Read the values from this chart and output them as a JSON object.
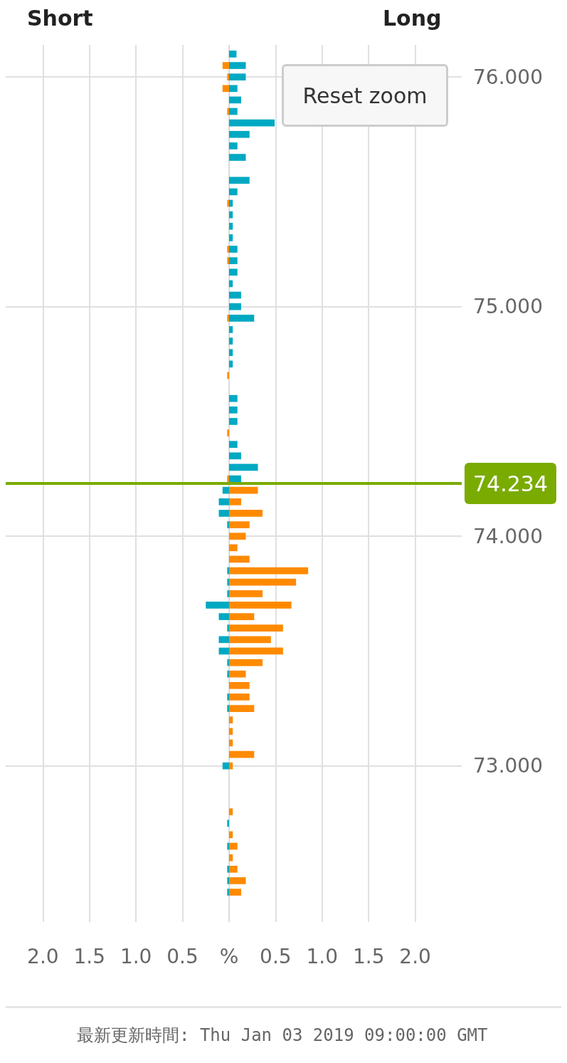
{
  "chart_data": {
    "type": "bar",
    "orientation": "horizontal",
    "annotations": [
      "Short",
      "Long",
      "Reset zoom",
      "最新更新時間: Thu Jan 03 2019 09:00:00 GMT"
    ],
    "xlim": [
      -2.4,
      2.5
    ],
    "xticks": [
      {
        "value": -2,
        "label": "2.0"
      },
      {
        "value": -1.5,
        "label": "1.5"
      },
      {
        "value": -1,
        "label": "1.0"
      },
      {
        "value": -0.5,
        "label": "0.5"
      },
      {
        "value": 0,
        "label": "%"
      },
      0.5,
      {
        "value": 1,
        "label": "1.0"
      },
      1.5,
      {
        "value": 2,
        "label": "2.0"
      }
    ],
    "ylim": [
      72.32,
      76.14
    ],
    "yticks": [
      {
        "value": 73,
        "label": "73.000"
      },
      {
        "value": 74,
        "label": "74.000"
      },
      {
        "value": 75,
        "label": "75.000"
      },
      {
        "value": 76,
        "label": "76.000"
      }
    ],
    "grid": true,
    "ref_lines": [
      {
        "axis": "y",
        "value": 74.234,
        "label": "74.234",
        "color": "#7aab00"
      }
    ],
    "series": [
      {
        "color": "#00a9c2",
        "x": [
          76.1,
          76.05,
          76.0,
          75.95,
          75.9,
          75.85,
          75.8,
          75.75,
          75.7,
          75.65,
          75.55,
          75.5,
          75.45,
          75.4,
          75.35,
          75.3,
          75.25,
          75.2,
          75.15,
          75.1,
          75.05,
          75.0,
          74.95,
          74.9,
          74.85,
          74.8,
          74.75,
          74.6,
          74.55,
          74.5,
          74.4,
          74.35,
          74.3,
          74.25,
          74.2,
          74.15,
          74.1,
          74.05,
          73.85,
          73.8,
          73.75,
          73.7,
          73.65,
          73.6,
          73.55,
          73.5,
          73.45,
          73.4,
          73.3,
          73.25,
          73.0,
          72.75,
          72.65,
          72.55,
          72.5,
          72.45
        ],
        "values": [
          0.08,
          0.18,
          0.18,
          0.09,
          0.13,
          0.09,
          0.49,
          0.22,
          0.09,
          0.18,
          0.22,
          0.09,
          0.04,
          0.04,
          0.04,
          0.04,
          0.09,
          0.09,
          0.09,
          0.04,
          0.13,
          0.13,
          0.27,
          0.04,
          0.04,
          0.04,
          0.04,
          0.09,
          0.09,
          0.09,
          0.09,
          0.13,
          0.31,
          0.13,
          -0.07,
          -0.11,
          -0.11,
          -0.02,
          -0.02,
          -0.02,
          -0.02,
          -0.25,
          -0.11,
          -0.02,
          -0.11,
          -0.11,
          -0.02,
          -0.02,
          -0.02,
          -0.02,
          -0.07,
          -0.02,
          -0.02,
          -0.02,
          -0.02,
          -0.02
        ]
      },
      {
        "color": "#ff8a00",
        "x": [
          76.05,
          76.0,
          75.95,
          75.85,
          75.45,
          75.25,
          75.2,
          74.95,
          74.7,
          74.45,
          74.25,
          74.2,
          74.15,
          74.1,
          74.05,
          74.0,
          73.95,
          73.9,
          73.85,
          73.8,
          73.75,
          73.7,
          73.65,
          73.6,
          73.55,
          73.5,
          73.45,
          73.4,
          73.35,
          73.3,
          73.25,
          73.2,
          73.15,
          73.1,
          73.05,
          73.0,
          72.8,
          72.7,
          72.65,
          72.6,
          72.55,
          72.5,
          72.45
        ],
        "values": [
          -0.07,
          -0.02,
          -0.07,
          -0.02,
          -0.02,
          -0.02,
          -0.02,
          -0.02,
          -0.02,
          -0.02,
          -0.02,
          0.31,
          0.13,
          0.36,
          0.22,
          0.18,
          0.09,
          0.22,
          0.85,
          0.72,
          0.36,
          0.67,
          0.27,
          0.58,
          0.45,
          0.58,
          0.36,
          0.18,
          0.22,
          0.22,
          0.27,
          0.04,
          0.04,
          0.04,
          0.27,
          0.04,
          0.04,
          0.04,
          0.09,
          0.04,
          0.09,
          0.18,
          0.13
        ]
      }
    ]
  }
}
